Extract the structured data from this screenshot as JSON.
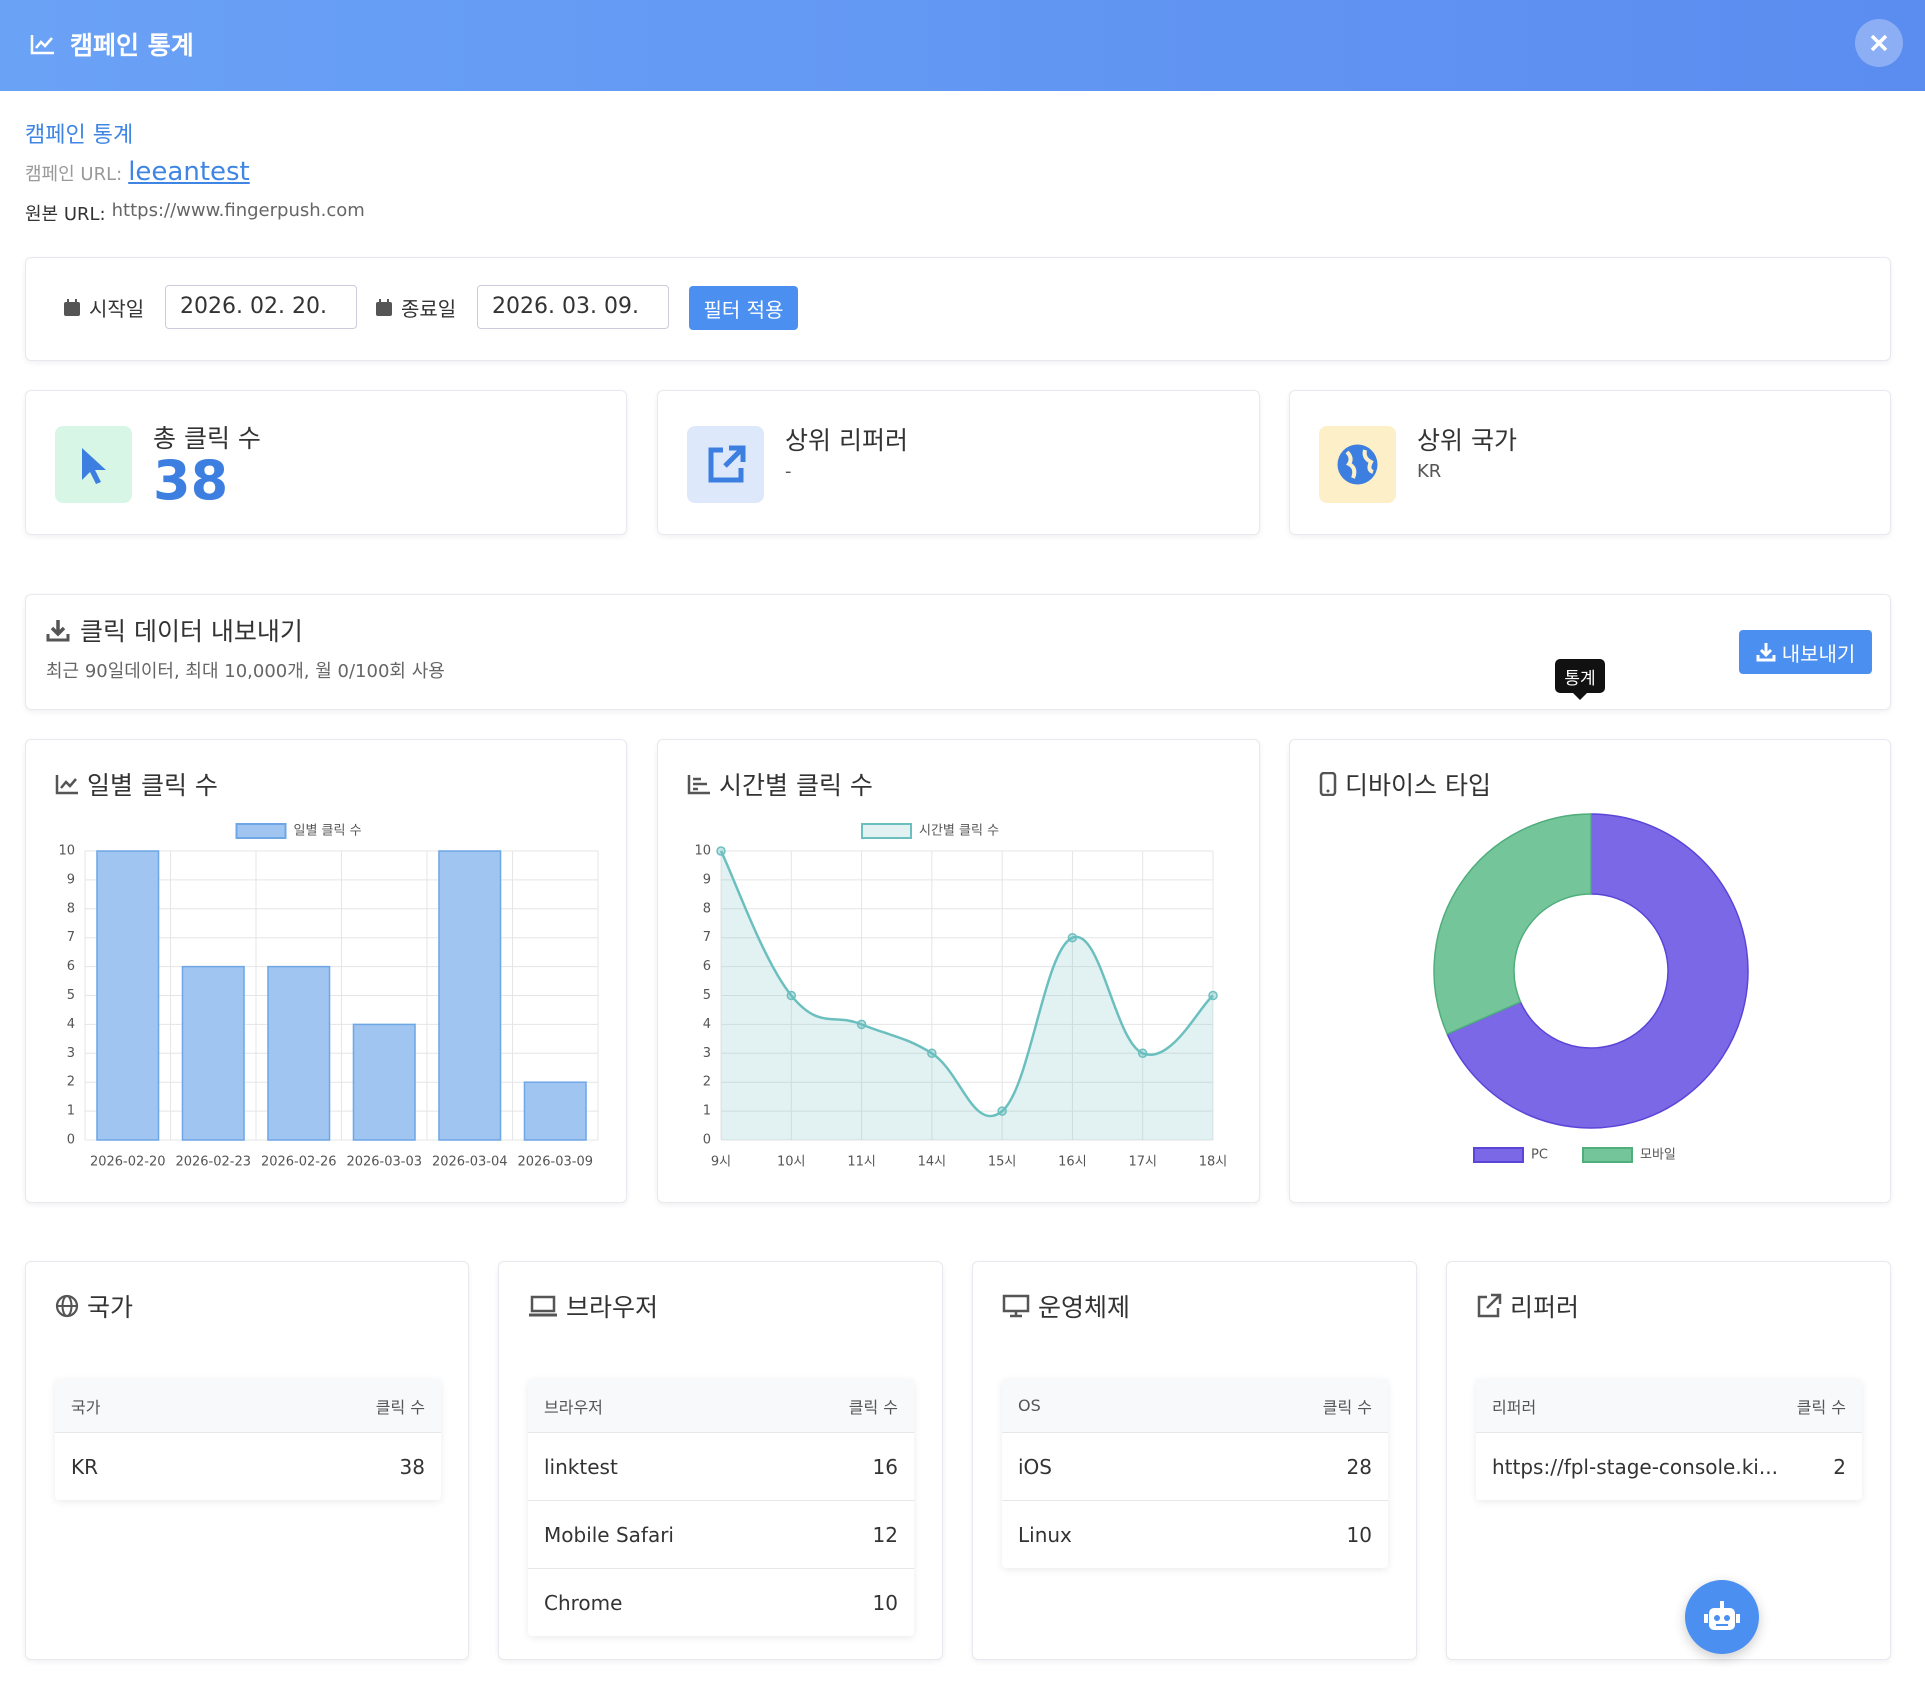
{
  "header": {
    "title": "캠페인 통계"
  },
  "info": {
    "heading": "캠페인 통계",
    "campaign_url_label": "캠페인 URL:",
    "campaign_url": "leeantest",
    "origin_url_label": "원본 URL:",
    "origin_url": "https://www.fingerpush.com"
  },
  "filter": {
    "start_label": "시작일",
    "start_date": "2026. 02. 20.",
    "end_label": "종료일",
    "end_date": "2026. 03. 09.",
    "button": "필터 적용"
  },
  "stats": [
    {
      "label": "총 클릭 수",
      "value": 38
    },
    {
      "label": "상위 리퍼러",
      "value": "-"
    },
    {
      "label": "상위 국가",
      "value": "KR"
    }
  ],
  "export": {
    "title": "클릭 데이터 내보내기",
    "description": "최근 90일데이터, 최대 10,000개, 월 0/100회 사용",
    "button": "내보내기"
  },
  "tooltip": "통계",
  "chart_data": [
    {
      "type": "bar",
      "title": "일별 클릭 수",
      "categories": [
        "2026-02-20",
        "2026-02-23",
        "2026-02-26",
        "2026-03-03",
        "2026-03-04",
        "2026-03-09"
      ],
      "series": [
        {
          "name": "일별 클릭 수",
          "color": "#9fc5f0",
          "values": [
            10,
            6,
            6,
            4,
            10,
            2
          ]
        }
      ],
      "ylim": [
        0,
        10
      ],
      "yticks": [
        0,
        1,
        2,
        3,
        4,
        5,
        6,
        7,
        8,
        9,
        10
      ],
      "grid": true
    },
    {
      "type": "line",
      "title": "시간별 클릭 수",
      "categories": [
        "9시",
        "10시",
        "11시",
        "14시",
        "15시",
        "16시",
        "17시",
        "18시"
      ],
      "series": [
        {
          "name": "시간별 클릭 수",
          "color": "#6cbfbf",
          "values": [
            10,
            5,
            4,
            3,
            1,
            7,
            3,
            5
          ]
        }
      ],
      "ylim": [
        0,
        10
      ],
      "yticks": [
        0,
        1,
        2,
        3,
        4,
        5,
        6,
        7,
        8,
        9,
        10
      ],
      "grid": true
    },
    {
      "type": "doughnut",
      "title": "디바이스 타입",
      "categories": [
        "PC",
        "모바일"
      ],
      "values": [
        26,
        12
      ],
      "colors": [
        "#7b68e6",
        "#74c69a"
      ]
    }
  ],
  "tables": [
    {
      "title": "국가",
      "columns": [
        "국가",
        "클릭 수"
      ],
      "rows": [
        [
          "KR",
          38
        ]
      ]
    },
    {
      "title": "브라우저",
      "columns": [
        "브라우저",
        "클릭 수"
      ],
      "rows": [
        [
          "linktest",
          16
        ],
        [
          "Mobile Safari",
          12
        ],
        [
          "Chrome",
          10
        ]
      ]
    },
    {
      "title": "운영체제",
      "columns": [
        "OS",
        "클릭 수"
      ],
      "rows": [
        [
          "iOS",
          28
        ],
        [
          "Linux",
          10
        ]
      ]
    },
    {
      "title": "리퍼러",
      "columns": [
        "리퍼러",
        "클릭 수"
      ],
      "rows": [
        [
          "https://fpl-stage-console.ki...",
          2
        ]
      ]
    }
  ]
}
